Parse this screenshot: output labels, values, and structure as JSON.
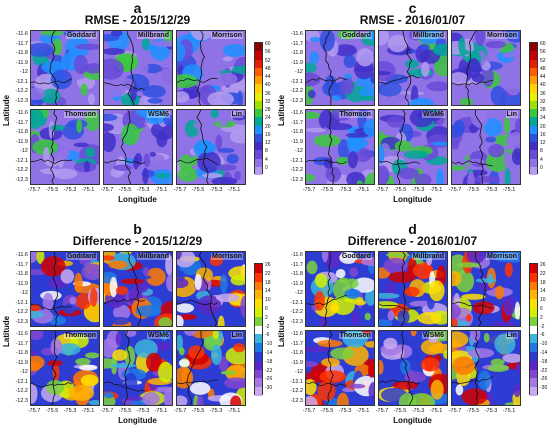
{
  "panels": [
    {
      "letter": "a",
      "title": "RMSE - 2015/12/29",
      "maps": [
        "Goddard",
        "Millbrand",
        "Morrison",
        "Thomson",
        "WSM6",
        "Lin"
      ],
      "y_ticks": [
        "-11.6",
        "-11.7",
        "-11.8",
        "-11.9",
        "-12",
        "-12.1",
        "-12.2",
        "-12.3"
      ],
      "x_ticks": [
        "-75.7",
        "-75.5",
        "-75.3",
        "-75.1"
      ],
      "ylabel": "Latitude",
      "xlabel": "Longitude",
      "cbar_ticks": [
        "60",
        "56",
        "52",
        "48",
        "44",
        "40",
        "36",
        "32",
        "28",
        "24",
        "20",
        "16",
        "12",
        "8",
        "4",
        "0"
      ],
      "palette": "rmse"
    },
    {
      "letter": "c",
      "title": "RMSE - 2016/01/07",
      "maps": [
        "Goddard",
        "Millbrand",
        "Morrison",
        "Thomson",
        "WSM6",
        "Lin"
      ],
      "y_ticks": [
        "-11.6",
        "-11.7",
        "-11.8",
        "-11.9",
        "-12",
        "-12.1",
        "-12.2",
        "-12.3"
      ],
      "x_ticks": [
        "-75.7",
        "-75.5",
        "-75.3",
        "-75.1"
      ],
      "ylabel": "Latitude",
      "xlabel": "Longitude",
      "cbar_ticks": [
        "60",
        "56",
        "52",
        "48",
        "44",
        "40",
        "36",
        "32",
        "28",
        "24",
        "20",
        "16",
        "12",
        "8",
        "4",
        "0"
      ],
      "palette": "rmse"
    },
    {
      "letter": "b",
      "title": "Difference - 2015/12/29",
      "maps": [
        "Goddard",
        "Millbrand",
        "Morrison",
        "Thomson",
        "WSM6",
        "Lin"
      ],
      "y_ticks": [
        "-11.6",
        "-11.7",
        "-11.8",
        "-11.9",
        "-12",
        "-12.1",
        "-12.2",
        "-12.3"
      ],
      "x_ticks": [
        "-75.7",
        "-75.5",
        "-75.3",
        "-75.1"
      ],
      "ylabel": "Latitude",
      "xlabel": "Longitude",
      "cbar_ticks": [
        "26",
        "22",
        "18",
        "14",
        "10",
        "6",
        "2",
        "-2",
        "-6",
        "-10",
        "-14",
        "-18",
        "-22",
        "-26",
        "-30"
      ],
      "palette": "diff"
    },
    {
      "letter": "d",
      "title": "Difference - 2016/01/07",
      "maps": [
        "Goddard",
        "Millbrand",
        "Morrison",
        "Thomson",
        "WSM6",
        "Lin"
      ],
      "y_ticks": [
        "-11.6",
        "-11.7",
        "-11.8",
        "-11.9",
        "-12",
        "-12.1",
        "-12.2",
        "-12.3"
      ],
      "x_ticks": [
        "-75.7",
        "-75.5",
        "-75.3",
        "-75.1"
      ],
      "ylabel": "Latitude",
      "xlabel": "Longitude",
      "cbar_ticks": [
        "26",
        "22",
        "18",
        "14",
        "10",
        "6",
        "2",
        "-2",
        "-6",
        "-10",
        "-14",
        "-18",
        "-22",
        "-26",
        "-30"
      ],
      "palette": "diff"
    }
  ],
  "colors": {
    "rmse": [
      "#8a0000",
      "#c40000",
      "#e81e00",
      "#ff5a00",
      "#ff9a00",
      "#ffd200",
      "#e6f000",
      "#9be000",
      "#3cc83c",
      "#00a896",
      "#1e90ff",
      "#3050e0",
      "#4030c8",
      "#6a4ad8",
      "#8f72e6",
      "#b49cf0"
    ],
    "diff": [
      "#d40000",
      "#ff3300",
      "#ff7a00",
      "#ffb400",
      "#ffe100",
      "#d2f000",
      "#7ad23c",
      "#ffffff",
      "#3cb4dc",
      "#1e78e6",
      "#2d3cd2",
      "#5a28c8",
      "#8246d2",
      "#a578e6",
      "#c8aaf0"
    ]
  }
}
